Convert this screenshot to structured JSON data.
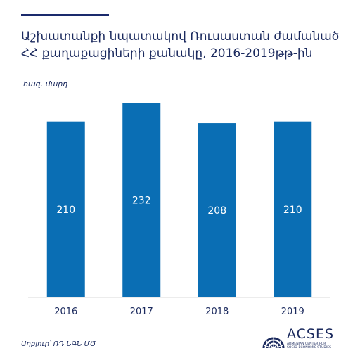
{
  "header": {
    "title_line1": "Աշխատանքի նպատակով Ռուսաստան ժամանած",
    "title_line2": "ՀՀ քաղաքացիների քանակը, 2016-2019թթ-ին",
    "unit": "հազ. մարդ"
  },
  "footer": {
    "source": "Աղբյուր՝ ՌԴ ՆԳՆ ՄԾ"
  },
  "logo": {
    "name": "ACSES",
    "sub_line1": "ARMENIAN CENTER FOR",
    "sub_line2": "SOCIO-ECONOMIC STUDIES"
  },
  "colors": {
    "bar": "#0a6eb4",
    "title": "#1b2a5e",
    "axis": "#d9d9d9"
  },
  "chart_data": {
    "type": "bar",
    "title": "Աշխատանքի նպատակով Ռուսաստան ժամանած ՀՀ քաղաքացիների քանակը, 2016-2019թթ-ին",
    "ylabel": "հազ. մարդ",
    "xlabel": "",
    "categories": [
      "2016",
      "2017",
      "2018",
      "2019"
    ],
    "values": [
      210,
      232,
      208,
      210
    ],
    "data_labels": [
      "210",
      "232",
      "208",
      "210"
    ],
    "ylim": [
      0,
      250
    ],
    "grid": false,
    "legend": "none"
  }
}
